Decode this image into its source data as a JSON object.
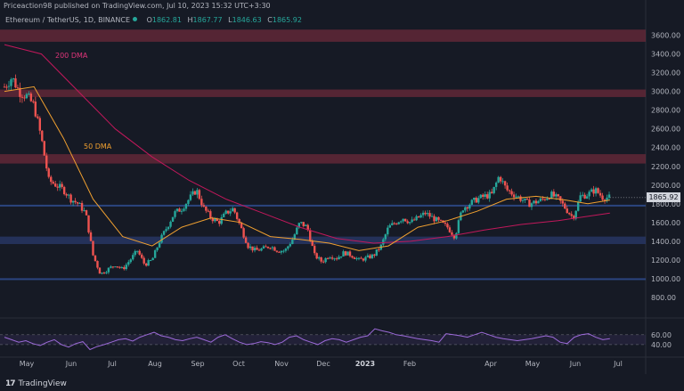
{
  "header": {
    "published": "Priceaction98 published on TradingView.com, Jul 10, 2023 15:32 UTC+3:30",
    "symbol": "Ethereum / TetherUS, 1D, BINANCE",
    "ohlc": [
      {
        "label": "O",
        "value": "1862.81"
      },
      {
        "label": "H",
        "value": "1867.77"
      },
      {
        "label": "L",
        "value": "1846.63"
      },
      {
        "label": "C",
        "value": "1865.92"
      }
    ]
  },
  "branding": {
    "logo_text": "TradingView",
    "logo_mark": "17"
  },
  "last_price_label": "1865.92",
  "colors": {
    "background": "#161a25",
    "up": "#26a69a",
    "down": "#ef5350",
    "ma200": "#c2185b",
    "ma50": "#f0a030",
    "rsi": "#9c6ad8",
    "zone_red": "#6b2a3a",
    "zone_blue": "#2a3a6b"
  },
  "chart_data": [
    {
      "type": "candlestick",
      "title": "",
      "x_ticks": [
        "May",
        "Jun",
        "Jul",
        "Aug",
        "Sep",
        "Oct",
        "Nov",
        "Dec",
        "2023",
        "Feb",
        "Apr",
        "May",
        "Jun",
        "Jul"
      ],
      "y_ticks": [
        "3600.00",
        "3400.00",
        "3200.00",
        "3000.00",
        "2800.00",
        "2600.00",
        "2400.00",
        "2200.00",
        "2000.00",
        "1800.00",
        "1600.00",
        "1400.00",
        "1200.00",
        "1000.00",
        "800.00"
      ],
      "ylim": [
        600,
        3900
      ],
      "annotations": [
        {
          "text": "200 DMA",
          "color": "#e0357a"
        },
        {
          "text": "50 DMA",
          "color": "#f0a030"
        }
      ],
      "zones": [
        {
          "kind": "resistance",
          "from": 3530,
          "to": 3660
        },
        {
          "kind": "resistance",
          "from": 2940,
          "to": 3020
        },
        {
          "kind": "resistance",
          "from": 2230,
          "to": 2330
        },
        {
          "kind": "support",
          "from": 1370,
          "to": 1450
        },
        {
          "kind": "line",
          "from": 1775,
          "to": 1790
        },
        {
          "kind": "line",
          "from": 995,
          "to": 1005
        }
      ],
      "close_path": [
        {
          "t": 0,
          "v": 3050
        },
        {
          "t": 2,
          "v": 3150
        },
        {
          "t": 4,
          "v": 3000
        },
        {
          "t": 6,
          "v": 2950
        },
        {
          "t": 8,
          "v": 2850
        },
        {
          "t": 10,
          "v": 2500
        },
        {
          "t": 12,
          "v": 2050
        },
        {
          "t": 14,
          "v": 2000
        },
        {
          "t": 16,
          "v": 1950
        },
        {
          "t": 18,
          "v": 1850
        },
        {
          "t": 20,
          "v": 1800
        },
        {
          "t": 22,
          "v": 1700
        },
        {
          "t": 24,
          "v": 1250
        },
        {
          "t": 26,
          "v": 1050
        },
        {
          "t": 28,
          "v": 1100
        },
        {
          "t": 30,
          "v": 1150
        },
        {
          "t": 32,
          "v": 1100
        },
        {
          "t": 34,
          "v": 1200
        },
        {
          "t": 36,
          "v": 1300
        },
        {
          "t": 38,
          "v": 1150
        },
        {
          "t": 40,
          "v": 1200
        },
        {
          "t": 42,
          "v": 1400
        },
        {
          "t": 44,
          "v": 1550
        },
        {
          "t": 46,
          "v": 1700
        },
        {
          "t": 48,
          "v": 1750
        },
        {
          "t": 50,
          "v": 1850
        },
        {
          "t": 52,
          "v": 1950
        },
        {
          "t": 54,
          "v": 1750
        },
        {
          "t": 56,
          "v": 1650
        },
        {
          "t": 58,
          "v": 1600
        },
        {
          "t": 60,
          "v": 1700
        },
        {
          "t": 62,
          "v": 1750
        },
        {
          "t": 64,
          "v": 1550
        },
        {
          "t": 66,
          "v": 1350
        },
        {
          "t": 68,
          "v": 1300
        },
        {
          "t": 70,
          "v": 1320
        },
        {
          "t": 72,
          "v": 1350
        },
        {
          "t": 74,
          "v": 1300
        },
        {
          "t": 76,
          "v": 1300
        },
        {
          "t": 78,
          "v": 1420
        },
        {
          "t": 80,
          "v": 1600
        },
        {
          "t": 82,
          "v": 1550
        },
        {
          "t": 84,
          "v": 1250
        },
        {
          "t": 86,
          "v": 1180
        },
        {
          "t": 88,
          "v": 1250
        },
        {
          "t": 90,
          "v": 1220
        },
        {
          "t": 92,
          "v": 1280
        },
        {
          "t": 94,
          "v": 1250
        },
        {
          "t": 96,
          "v": 1200
        },
        {
          "t": 98,
          "v": 1220
        },
        {
          "t": 100,
          "v": 1250
        },
        {
          "t": 102,
          "v": 1350
        },
        {
          "t": 104,
          "v": 1550
        },
        {
          "t": 106,
          "v": 1600
        },
        {
          "t": 108,
          "v": 1650
        },
        {
          "t": 110,
          "v": 1600
        },
        {
          "t": 112,
          "v": 1650
        },
        {
          "t": 114,
          "v": 1700
        },
        {
          "t": 116,
          "v": 1650
        },
        {
          "t": 118,
          "v": 1600
        },
        {
          "t": 120,
          "v": 1550
        },
        {
          "t": 122,
          "v": 1450
        },
        {
          "t": 124,
          "v": 1750
        },
        {
          "t": 126,
          "v": 1800
        },
        {
          "t": 128,
          "v": 1850
        },
        {
          "t": 130,
          "v": 1880
        },
        {
          "t": 132,
          "v": 1900
        },
        {
          "t": 134,
          "v": 2100
        },
        {
          "t": 136,
          "v": 1950
        },
        {
          "t": 138,
          "v": 1900
        },
        {
          "t": 140,
          "v": 1850
        },
        {
          "t": 142,
          "v": 1800
        },
        {
          "t": 144,
          "v": 1820
        },
        {
          "t": 146,
          "v": 1850
        },
        {
          "t": 148,
          "v": 1900
        },
        {
          "t": 150,
          "v": 1850
        },
        {
          "t": 152,
          "v": 1750
        },
        {
          "t": 154,
          "v": 1650
        },
        {
          "t": 156,
          "v": 1880
        },
        {
          "t": 158,
          "v": 1900
        },
        {
          "t": 160,
          "v": 1950
        },
        {
          "t": 162,
          "v": 1870
        },
        {
          "t": 164,
          "v": 1866
        }
      ],
      "ma50": [
        {
          "t": 0,
          "v": 3000
        },
        {
          "t": 8,
          "v": 3050
        },
        {
          "t": 16,
          "v": 2500
        },
        {
          "t": 24,
          "v": 1850
        },
        {
          "t": 32,
          "v": 1450
        },
        {
          "t": 40,
          "v": 1350
        },
        {
          "t": 48,
          "v": 1550
        },
        {
          "t": 56,
          "v": 1650
        },
        {
          "t": 64,
          "v": 1600
        },
        {
          "t": 72,
          "v": 1450
        },
        {
          "t": 80,
          "v": 1420
        },
        {
          "t": 88,
          "v": 1380
        },
        {
          "t": 96,
          "v": 1300
        },
        {
          "t": 104,
          "v": 1350
        },
        {
          "t": 112,
          "v": 1550
        },
        {
          "t": 120,
          "v": 1620
        },
        {
          "t": 128,
          "v": 1720
        },
        {
          "t": 136,
          "v": 1850
        },
        {
          "t": 144,
          "v": 1880
        },
        {
          "t": 152,
          "v": 1840
        },
        {
          "t": 158,
          "v": 1800
        },
        {
          "t": 164,
          "v": 1840
        }
      ],
      "ma200": [
        {
          "t": 0,
          "v": 3500
        },
        {
          "t": 10,
          "v": 3400
        },
        {
          "t": 20,
          "v": 3000
        },
        {
          "t": 30,
          "v": 2600
        },
        {
          "t": 40,
          "v": 2300
        },
        {
          "t": 50,
          "v": 2050
        },
        {
          "t": 60,
          "v": 1850
        },
        {
          "t": 70,
          "v": 1700
        },
        {
          "t": 80,
          "v": 1550
        },
        {
          "t": 90,
          "v": 1430
        },
        {
          "t": 100,
          "v": 1380
        },
        {
          "t": 110,
          "v": 1400
        },
        {
          "t": 120,
          "v": 1450
        },
        {
          "t": 130,
          "v": 1520
        },
        {
          "t": 140,
          "v": 1580
        },
        {
          "t": 150,
          "v": 1620
        },
        {
          "t": 164,
          "v": 1700
        }
      ]
    },
    {
      "type": "line",
      "title": "",
      "y_ticks": [
        "60.00",
        "40.00"
      ],
      "ylim": [
        20,
        85
      ],
      "rsi_band": [
        40,
        60
      ],
      "values": [
        55,
        50,
        45,
        48,
        42,
        38,
        45,
        50,
        40,
        35,
        42,
        46,
        30,
        36,
        40,
        45,
        50,
        52,
        47,
        55,
        60,
        65,
        58,
        55,
        50,
        48,
        52,
        55,
        50,
        45,
        55,
        60,
        52,
        45,
        40,
        42,
        46,
        44,
        40,
        45,
        55,
        58,
        50,
        45,
        40,
        48,
        52,
        50,
        45,
        50,
        55,
        58,
        72,
        68,
        65,
        60,
        58,
        55,
        52,
        50,
        48,
        45,
        62,
        60,
        58,
        55,
        60,
        65,
        60,
        55,
        52,
        50,
        48,
        50,
        52,
        55,
        58,
        55,
        45,
        42,
        55,
        60,
        62,
        55,
        50,
        52
      ]
    }
  ]
}
